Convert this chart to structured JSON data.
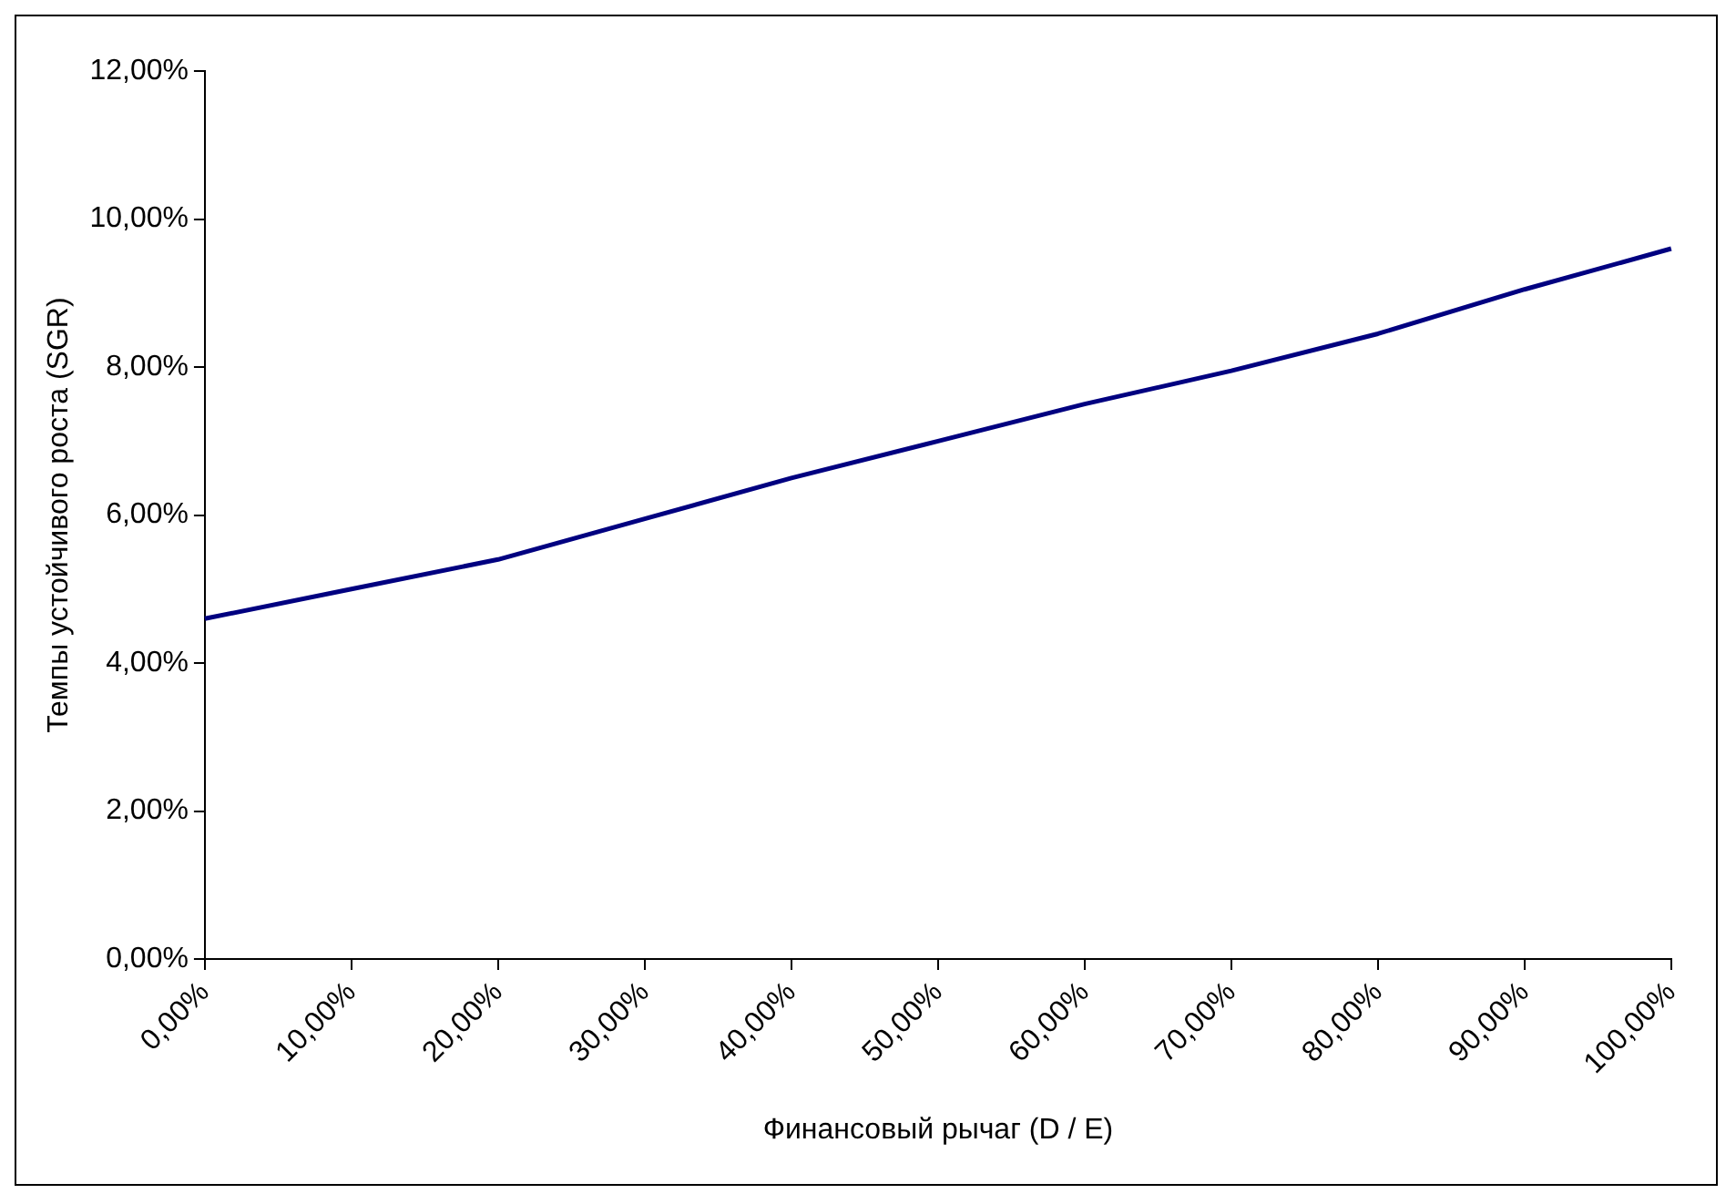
{
  "chart_data": {
    "type": "line",
    "xlabel": "Финансовый рычаг (D / E)",
    "ylabel": "Темпы устойчивого роста (SGR)",
    "categories": [
      "0,00%",
      "10,00%",
      "20,00%",
      "30,00%",
      "40,00%",
      "50,00%",
      "60,00%",
      "70,00%",
      "80,00%",
      "90,00%",
      "100,00%"
    ],
    "series": [
      {
        "color": "#000080",
        "values": [
          4.6,
          5.0,
          5.4,
          5.95,
          6.5,
          7.0,
          7.5,
          7.95,
          8.45,
          9.05,
          9.6
        ]
      }
    ],
    "ylim": [
      0,
      12
    ],
    "yticks": [
      {
        "value": 0,
        "label": "0,00%"
      },
      {
        "value": 2,
        "label": "2,00%"
      },
      {
        "value": 4,
        "label": "4,00%"
      },
      {
        "value": 6,
        "label": "6,00%"
      },
      {
        "value": 8,
        "label": "8,00%"
      },
      {
        "value": 10,
        "label": "10,00%"
      },
      {
        "value": 12,
        "label": "12,00%"
      }
    ],
    "grid": false,
    "legend": false,
    "marker": "none",
    "line_style": "solid"
  }
}
